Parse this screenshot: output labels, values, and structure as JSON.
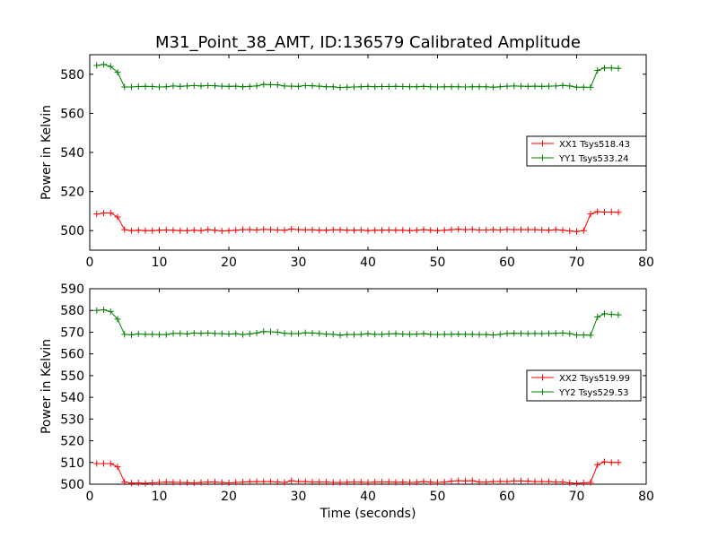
{
  "chart_data": [
    {
      "type": "line",
      "title": "M31_Point_38_AMT, ID:136579 Calibrated Amplitude",
      "xlabel": "",
      "ylabel": "Power in Kelvin",
      "xlim": [
        0,
        80
      ],
      "ylim": [
        490,
        590
      ],
      "xticks": [
        0,
        10,
        20,
        30,
        40,
        50,
        60,
        70,
        80
      ],
      "yticks": [
        500,
        520,
        540,
        560,
        580
      ],
      "grid": false,
      "legend": "right",
      "series": [
        {
          "name": "XX1 Tsys518.43",
          "color": "#ff0000",
          "x": [
            1,
            2,
            3,
            4,
            5,
            6,
            7,
            8,
            9,
            10,
            11,
            12,
            13,
            14,
            15,
            16,
            17,
            18,
            19,
            20,
            21,
            22,
            23,
            24,
            25,
            26,
            27,
            28,
            29,
            30,
            31,
            32,
            33,
            34,
            35,
            36,
            37,
            38,
            39,
            40,
            41,
            42,
            43,
            44,
            45,
            46,
            47,
            48,
            49,
            50,
            51,
            52,
            53,
            54,
            55,
            56,
            57,
            58,
            59,
            60,
            61,
            62,
            63,
            64,
            65,
            66,
            67,
            68,
            69,
            70,
            71,
            72,
            73,
            74,
            75,
            76
          ],
          "y": [
            508.5,
            509,
            509,
            507,
            500.5,
            500,
            500.2,
            500,
            500,
            500.2,
            500.3,
            500.2,
            500,
            500,
            500.2,
            500,
            500.5,
            500.2,
            499.8,
            500,
            500.2,
            500.5,
            500.5,
            500.3,
            500.6,
            500.5,
            500.3,
            500.2,
            500.8,
            500.5,
            500.4,
            500.4,
            500.2,
            500.2,
            500.4,
            500.4,
            500.2,
            500.2,
            500.3,
            500,
            500.2,
            500.2,
            500.3,
            500.2,
            500.2,
            500,
            500.2,
            500.5,
            500.2,
            500,
            500.2,
            500.5,
            500.7,
            500.5,
            500.6,
            500.3,
            500.3,
            500.5,
            500.3,
            500.6,
            500.5,
            500.5,
            500.5,
            500.5,
            500.3,
            500.2,
            500.5,
            500.2,
            499.8,
            499.5,
            500,
            508.5,
            509.7,
            509.5,
            509.5,
            509.3
          ]
        },
        {
          "name": "YY1 Tsys533.24",
          "color": "#008000",
          "x": [
            1,
            2,
            3,
            4,
            5,
            6,
            7,
            8,
            9,
            10,
            11,
            12,
            13,
            14,
            15,
            16,
            17,
            18,
            19,
            20,
            21,
            22,
            23,
            24,
            25,
            26,
            27,
            28,
            29,
            30,
            31,
            32,
            33,
            34,
            35,
            36,
            37,
            38,
            39,
            40,
            41,
            42,
            43,
            44,
            45,
            46,
            47,
            48,
            49,
            50,
            51,
            52,
            53,
            54,
            55,
            56,
            57,
            58,
            59,
            60,
            61,
            62,
            63,
            64,
            65,
            66,
            67,
            68,
            69,
            70,
            71,
            72,
            73,
            74,
            75,
            76
          ],
          "y": [
            584.5,
            585,
            584,
            581,
            573.5,
            573.5,
            573.7,
            573.8,
            573.7,
            573.5,
            573.6,
            574,
            573.8,
            574,
            574.2,
            574,
            574.2,
            574.1,
            573.9,
            573.8,
            573.9,
            573.6,
            573.8,
            574,
            574.8,
            574.7,
            574.6,
            574,
            573.9,
            573.8,
            574.2,
            574.1,
            573.9,
            573.6,
            573.6,
            573.2,
            573.4,
            573.5,
            573.6,
            573.8,
            573.6,
            573.7,
            573.7,
            573.8,
            573.7,
            573.6,
            573.6,
            573.8,
            573.6,
            573.5,
            573.6,
            573.6,
            573.6,
            573.5,
            573.6,
            573.6,
            573.6,
            573.4,
            573.6,
            573.9,
            574,
            573.9,
            573.8,
            573.9,
            573.8,
            573.9,
            574,
            574.3,
            574,
            573.4,
            573.4,
            573.3,
            582,
            583.2,
            583.2,
            583
          ]
        }
      ]
    },
    {
      "type": "line",
      "title": "",
      "xlabel": "Time (seconds)",
      "ylabel": "Power in Kelvin",
      "xlim": [
        0,
        80
      ],
      "ylim": [
        500,
        590
      ],
      "xticks": [
        0,
        10,
        20,
        30,
        40,
        50,
        60,
        70,
        80
      ],
      "yticks": [
        500,
        510,
        520,
        530,
        540,
        550,
        560,
        570,
        580,
        590
      ],
      "grid": false,
      "legend": "right",
      "series": [
        {
          "name": "XX2 Tsys519.99",
          "color": "#ff0000",
          "x": [
            1,
            2,
            3,
            4,
            5,
            6,
            7,
            8,
            9,
            10,
            11,
            12,
            13,
            14,
            15,
            16,
            17,
            18,
            19,
            20,
            21,
            22,
            23,
            24,
            25,
            26,
            27,
            28,
            29,
            30,
            31,
            32,
            33,
            34,
            35,
            36,
            37,
            38,
            39,
            40,
            41,
            42,
            43,
            44,
            45,
            46,
            47,
            48,
            49,
            50,
            51,
            52,
            53,
            54,
            55,
            56,
            57,
            58,
            59,
            60,
            61,
            62,
            63,
            64,
            65,
            66,
            67,
            68,
            69,
            70,
            71,
            72,
            73,
            74,
            75,
            76
          ],
          "y": [
            509.5,
            509.5,
            509.5,
            508,
            501,
            500.5,
            500.6,
            500.4,
            500.6,
            500.8,
            501,
            500.9,
            500.8,
            500.7,
            500.6,
            500.8,
            501,
            501,
            500.8,
            500.6,
            500.8,
            501,
            501.1,
            501.2,
            501.2,
            501.2,
            501,
            500.8,
            501.6,
            501.2,
            501.2,
            501,
            501,
            501,
            500.8,
            500.8,
            500.9,
            501,
            501,
            500.8,
            501,
            501,
            501,
            500.9,
            501,
            500.8,
            500.9,
            501.2,
            501,
            500.8,
            501,
            501.4,
            501.6,
            501.5,
            501.6,
            501,
            501,
            501.2,
            501.3,
            501.2,
            501.5,
            501.5,
            501.4,
            501.2,
            501.2,
            501.2,
            501,
            501,
            500.6,
            500.4,
            500.6,
            500.8,
            509,
            510.3,
            510,
            510
          ]
        },
        {
          "name": "YY2 Tsys529.53",
          "color": "#008000",
          "x": [
            1,
            2,
            3,
            4,
            5,
            6,
            7,
            8,
            9,
            10,
            11,
            12,
            13,
            14,
            15,
            16,
            17,
            18,
            19,
            20,
            21,
            22,
            23,
            24,
            25,
            26,
            27,
            28,
            29,
            30,
            31,
            32,
            33,
            34,
            35,
            36,
            37,
            38,
            39,
            40,
            41,
            42,
            43,
            44,
            45,
            46,
            47,
            48,
            49,
            50,
            51,
            52,
            53,
            54,
            55,
            56,
            57,
            58,
            59,
            60,
            61,
            62,
            63,
            64,
            65,
            66,
            67,
            68,
            69,
            70,
            71,
            72,
            73,
            74,
            75,
            76
          ],
          "y": [
            580,
            580.3,
            579.5,
            576,
            569,
            568.8,
            569.2,
            569,
            569,
            568.9,
            568.9,
            569.4,
            569.4,
            569.2,
            569.6,
            569.4,
            569.6,
            569.4,
            569.3,
            569.1,
            569.3,
            568.9,
            569.2,
            569.6,
            570.3,
            570.2,
            570,
            569.5,
            569.3,
            569.3,
            569.7,
            569.6,
            569.4,
            569.1,
            569,
            568.6,
            568.9,
            568.9,
            569,
            569.3,
            569,
            569,
            569.2,
            569.3,
            569.1,
            569,
            569.1,
            569.3,
            569,
            568.9,
            569,
            569,
            569.1,
            569,
            569,
            568.9,
            568.9,
            568.7,
            569,
            569.4,
            569.5,
            569.4,
            569.3,
            569.4,
            569.3,
            569.4,
            569.5,
            569.6,
            569.3,
            568.7,
            568.7,
            568.6,
            577,
            578.5,
            578.2,
            578
          ]
        }
      ]
    }
  ]
}
